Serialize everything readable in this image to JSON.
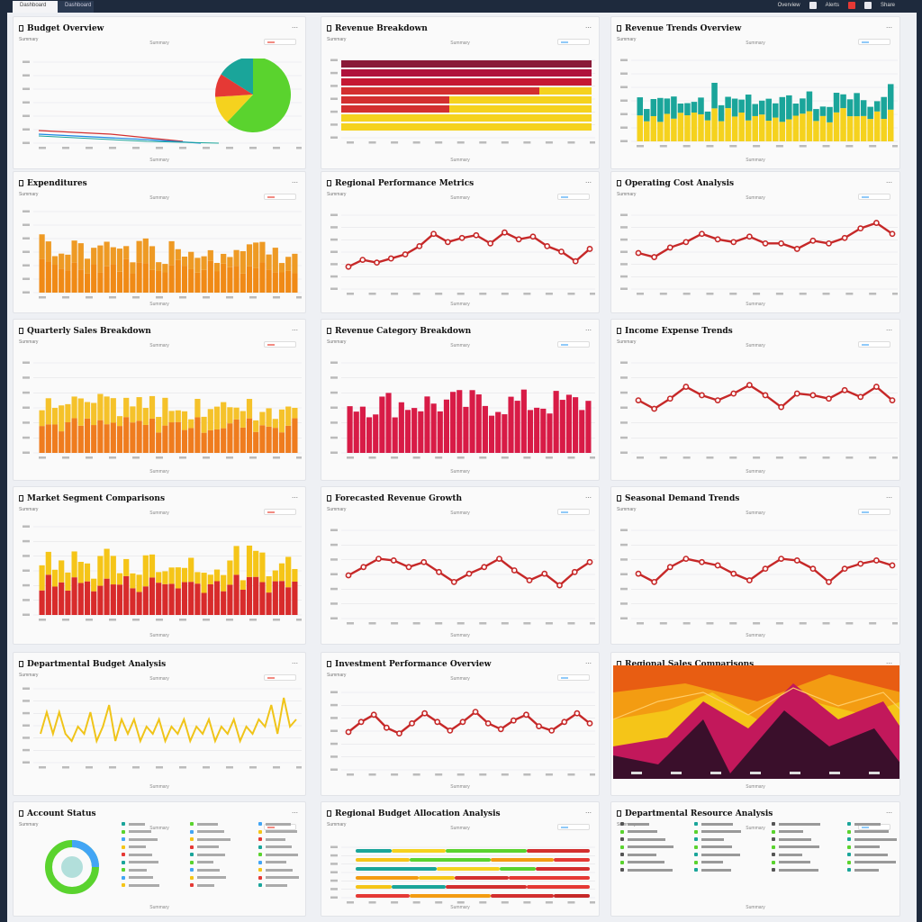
{
  "window": {
    "tabs": [
      {
        "label": "Dashboard"
      },
      {
        "label": "Dashboard"
      }
    ],
    "topbar": {
      "items": [
        "Overview",
        "Alerts",
        "Share"
      ]
    }
  },
  "colors": {
    "red": "#d32f2f",
    "crimson": "#c2185b",
    "yellow": "#f5d21e",
    "orange": "#f08a16",
    "teal": "#1aa59a",
    "green": "#5ad32e",
    "maroon": "#8a1a38",
    "lineRed": "#c62828",
    "deepPurple": "#3a0f2b",
    "amber": "#ffb300"
  },
  "cards": [
    {
      "title": "Budget Overview",
      "subtitle": "Summary",
      "menu": "⋯"
    },
    {
      "title": "Revenue Breakdown",
      "subtitle": "Summary",
      "menu": "⋯"
    },
    {
      "title": "Revenue Trends Overview",
      "subtitle": "Summary",
      "menu": "⋯"
    },
    {
      "title": "Expenditures",
      "subtitle": "Summary",
      "menu": "⋯"
    },
    {
      "title": "Regional Performance Metrics",
      "subtitle": "Summary",
      "menu": "⋯"
    },
    {
      "title": "Operating Cost Analysis",
      "subtitle": "Summary",
      "menu": "⋯"
    },
    {
      "title": "Quarterly Sales Breakdown",
      "subtitle": "Summary",
      "menu": "⋯"
    },
    {
      "title": "Revenue Category Breakdown",
      "subtitle": "Summary",
      "menu": "⋯"
    },
    {
      "title": "Income Expense Trends",
      "subtitle": "Summary",
      "menu": "⋯"
    },
    {
      "title": "Market Segment Comparisons",
      "subtitle": "Summary",
      "menu": "⋯"
    },
    {
      "title": "Forecasted Revenue Growth",
      "subtitle": "Summary",
      "menu": "⋯"
    },
    {
      "title": "Seasonal Demand Trends",
      "subtitle": "Summary",
      "menu": "⋯"
    },
    {
      "title": "Departmental Budget Analysis",
      "subtitle": "Summary",
      "menu": "⋯"
    },
    {
      "title": "Investment Performance Overview",
      "subtitle": "Summary",
      "menu": "⋯"
    },
    {
      "title": "Regional Sales Comparisons",
      "subtitle": "Summary",
      "menu": "⋯"
    },
    {
      "title": "Account Status",
      "subtitle": "Summary",
      "menu": "⋯"
    },
    {
      "title": "Regional Budget Allocation Analysis",
      "subtitle": "Summary",
      "menu": "⋯"
    },
    {
      "title": "Departmental Resource Analysis",
      "subtitle": "Summary",
      "menu": "⋯"
    }
  ],
  "chart_data": [
    {
      "type": "pie",
      "slices": [
        {
          "value": 62,
          "color": "#5ad32e"
        },
        {
          "value": 12,
          "color": "#f5d21e"
        },
        {
          "value": 10,
          "color": "#e53935"
        },
        {
          "value": 16,
          "color": "#1aa59a"
        }
      ]
    },
    {
      "type": "bar",
      "orientation": "horizontal",
      "bars": [
        100,
        100,
        100,
        80,
        40,
        40,
        100,
        100
      ]
    },
    {
      "type": "bar",
      "series": [
        {
          "name": "teal"
        },
        {
          "name": "yellow"
        }
      ]
    },
    {
      "type": "bar"
    },
    {
      "type": "line",
      "values": [
        3,
        4,
        3.6,
        4.2,
        4.8,
        6,
        7.8,
        6.6,
        7.2,
        7.6,
        6.4,
        8,
        7,
        7.4,
        6,
        5.2,
        3.8,
        5.6
      ]
    },
    {
      "type": "line",
      "values": [
        5,
        4.4,
        5.8,
        6.6,
        7.8,
        7,
        6.6,
        7.4,
        6.4,
        6.4,
        5.6,
        6.8,
        6.4,
        7.2,
        8.6,
        9.4,
        7.8
      ]
    },
    {
      "type": "bar"
    },
    {
      "type": "bar"
    },
    {
      "type": "line",
      "values": [
        6,
        5,
        6.2,
        7.6,
        6.6,
        6,
        6.8,
        7.8,
        6.6,
        5.2,
        6.8,
        6.6,
        6.2,
        7.2,
        6.4,
        7.6,
        6
      ]
    },
    {
      "type": "bar"
    },
    {
      "type": "line",
      "values": [
        5,
        6,
        7,
        6.8,
        6,
        6.6,
        5.4,
        4.2,
        5.2,
        6,
        7,
        5.6,
        4.4,
        5.2,
        3.8,
        5.4,
        6.6
      ]
    },
    {
      "type": "line",
      "values": [
        5.2,
        4.2,
        6,
        7,
        6.6,
        6.2,
        5.2,
        4.4,
        5.8,
        7,
        6.8,
        5.8,
        4.2,
        5.8,
        6.4,
        6.8,
        6.2
      ]
    },
    {
      "type": "line",
      "values": [
        4,
        7,
        4,
        7,
        4,
        3,
        5,
        4,
        7,
        3,
        5,
        8,
        3,
        6,
        4,
        6,
        3,
        5,
        4,
        6,
        3,
        5,
        4,
        6,
        3,
        5,
        4,
        6,
        3,
        5,
        4,
        6,
        3,
        5,
        4,
        6,
        5,
        8,
        4,
        9,
        5,
        6
      ]
    },
    {
      "type": "line",
      "values": [
        5,
        6.4,
        7.4,
        5.6,
        4.8,
        6.2,
        7.6,
        6.4,
        5.2,
        6.4,
        7.8,
        6.2,
        5.4,
        6.6,
        7.4,
        5.8,
        5.2,
        6.4,
        7.6,
        6.2
      ]
    },
    {
      "type": "area"
    },
    {
      "type": "pie",
      "slices": [
        {
          "value": 70,
          "color": "#5ad32e"
        },
        {
          "value": 30,
          "color": "#42a5f5"
        }
      ]
    },
    {
      "type": "bar",
      "orientation": "horizontal"
    },
    {
      "type": "table"
    }
  ]
}
